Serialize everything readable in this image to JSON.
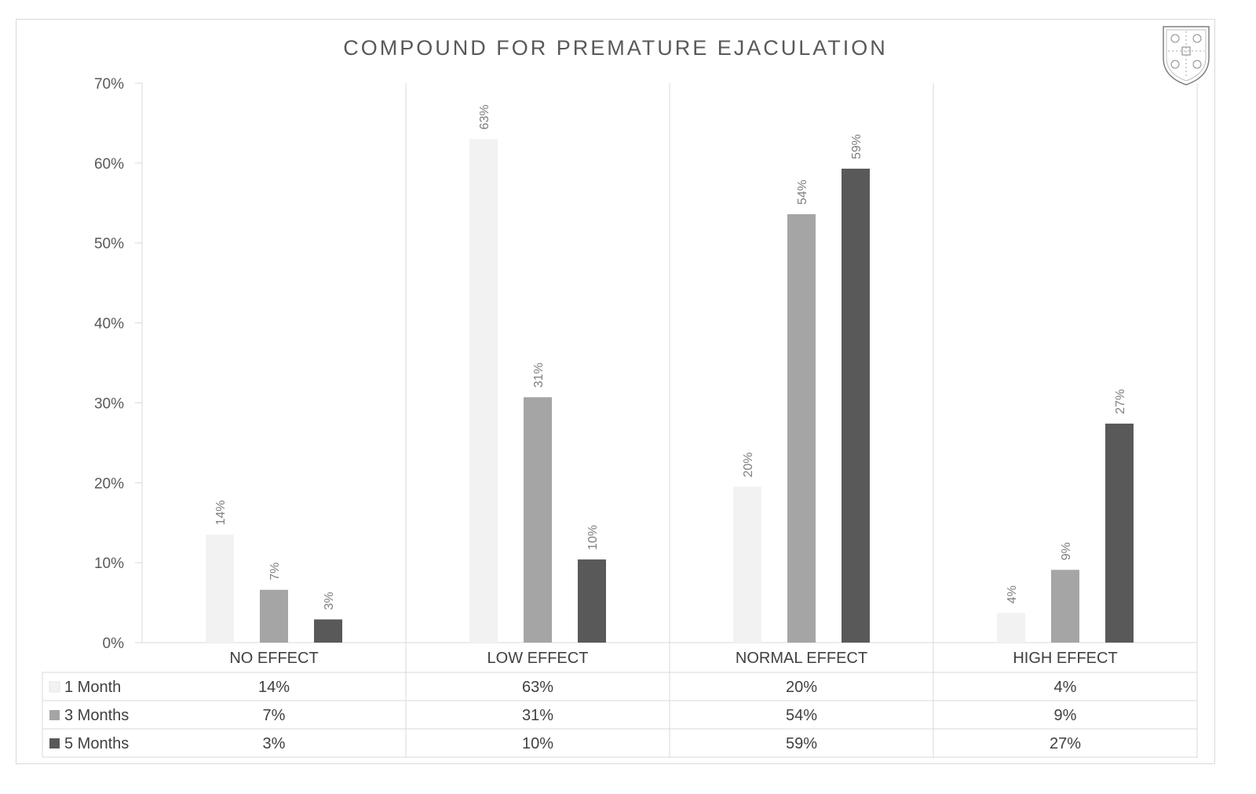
{
  "chart_data": {
    "type": "bar",
    "title": "COMPOUND FOR PREMATURE EJACULATION",
    "xlabel": "",
    "ylabel": "",
    "ylim": [
      0,
      0.7
    ],
    "y_ticks": [
      0,
      0.1,
      0.2,
      0.3,
      0.4,
      0.5,
      0.6,
      0.7
    ],
    "y_tick_labels": [
      "0%",
      "10%",
      "20%",
      "30%",
      "40%",
      "50%",
      "60%",
      "70%"
    ],
    "categories": [
      "NO EFFECT",
      "LOW EFFECT",
      "NORMAL EFFECT",
      "HIGH EFFECT"
    ],
    "series": [
      {
        "name": "1 Month",
        "color": "#f2f2f2",
        "values": [
          0.135,
          0.63,
          0.195,
          0.037
        ],
        "labels": [
          "14%",
          "63%",
          "20%",
          "4%"
        ]
      },
      {
        "name": "3 Months",
        "color": "#a5a5a5",
        "values": [
          0.066,
          0.307,
          0.536,
          0.091
        ],
        "labels": [
          "7%",
          "31%",
          "54%",
          "9%"
        ]
      },
      {
        "name": "5 Months",
        "color": "#595959",
        "values": [
          0.029,
          0.104,
          0.593,
          0.274
        ],
        "labels": [
          "3%",
          "10%",
          "59%",
          "27%"
        ]
      }
    ],
    "grid": "vertical category separators",
    "legend": "data table below chart",
    "data_table": true
  },
  "logo": {
    "name": "crest-logo"
  }
}
